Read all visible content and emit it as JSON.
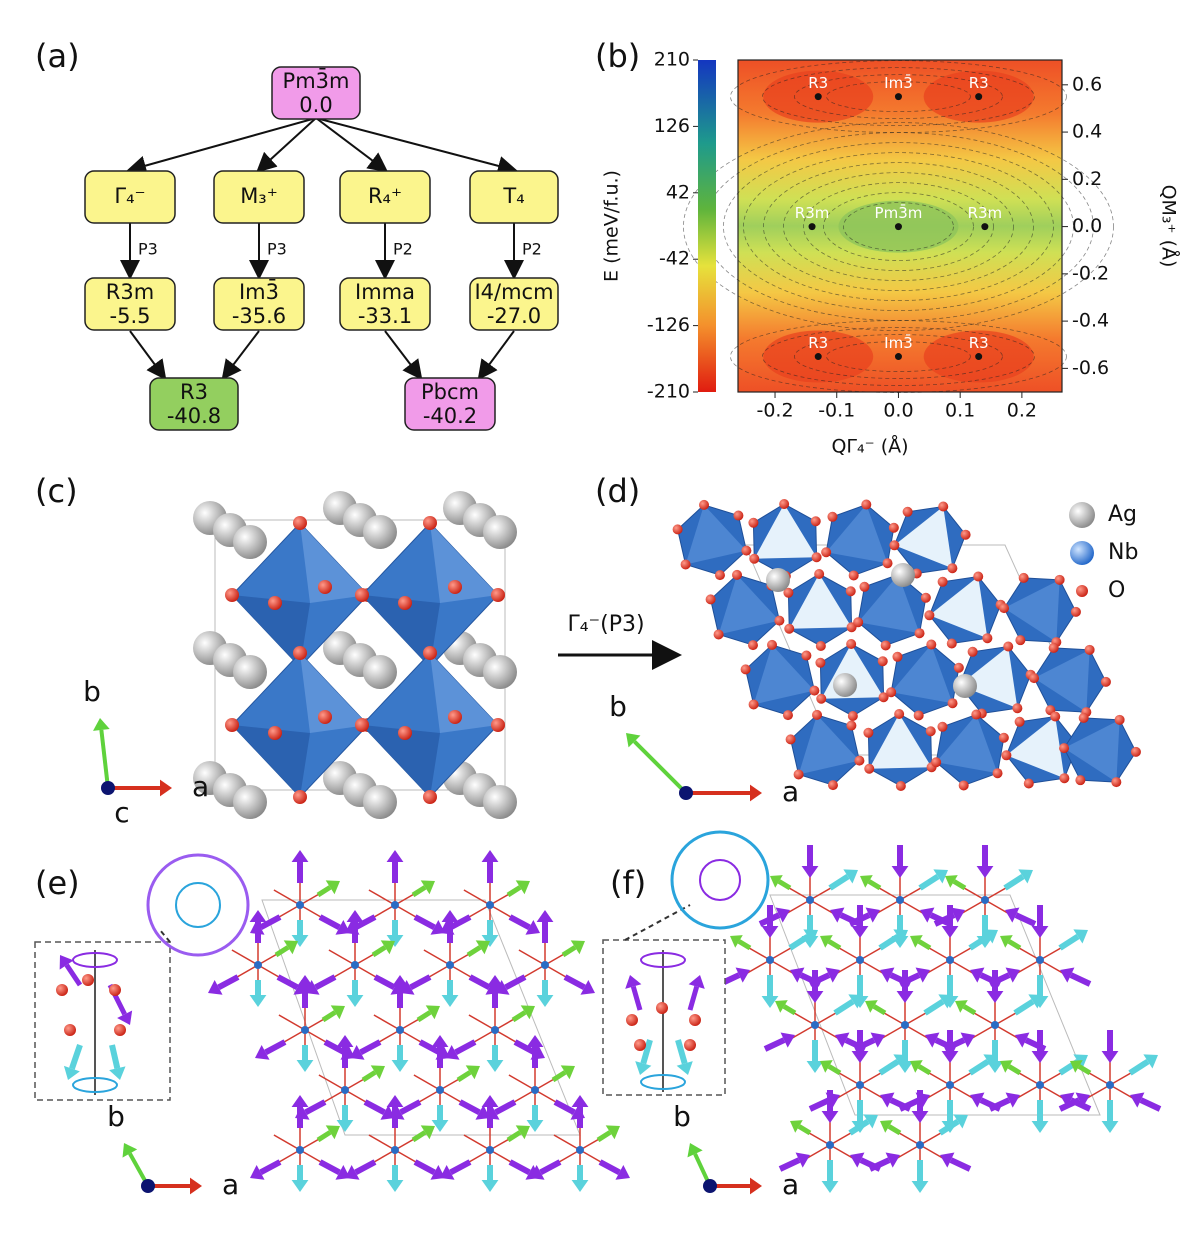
{
  "diagram": {
    "label": "(a)",
    "nodes": [
      {
        "label": "Pm3̄m",
        "energy": "0.0"
      },
      {
        "label": "Γ₄⁻"
      },
      {
        "label": "M₃⁺"
      },
      {
        "label": "R₄⁺"
      },
      {
        "label": "T₄"
      },
      {
        "label": "R3m",
        "energy": "-5.5"
      },
      {
        "label": "Im3̄",
        "energy": "-35.6"
      },
      {
        "label": "Imma",
        "energy": "-33.1"
      },
      {
        "label": "I4/mcm",
        "energy": "-27.0"
      },
      {
        "label": "R3",
        "energy": "-40.8"
      },
      {
        "label": "Pbcm",
        "energy": "-40.2"
      }
    ],
    "edge_labels": [
      "P3",
      "P3",
      "P2",
      "P2"
    ]
  },
  "chart_data": {
    "type": "contour",
    "label": "(b)",
    "x_label": "QΓ₄⁻ (Å)",
    "y2_label": "QM₃⁺ (Å)",
    "xlim": [
      -0.26,
      0.265
    ],
    "xticks": [
      -0.2,
      -0.1,
      {
        "value": 0,
        "label": "0.0"
      },
      0.1,
      0.2
    ],
    "y2lim": [
      -0.7,
      0.705
    ],
    "y2ticks": [
      0.6,
      0.4,
      0.2,
      {
        "value": 0,
        "label": "0.0"
      },
      -0.2,
      -0.4,
      -0.6
    ],
    "colorbar": {
      "label": "E (meV/f.u.)",
      "lim": [
        -210,
        210
      ],
      "ticks": [
        210,
        126,
        42,
        -42,
        -126,
        -210
      ]
    },
    "points": [
      {
        "label": "R3",
        "x": -0.13,
        "y": 0.55
      },
      {
        "label": "Im3̄",
        "x": 0,
        "y": 0.55
      },
      {
        "label": "R3",
        "x": 0.13,
        "y": 0.55
      },
      {
        "label": "R3m",
        "x": -0.14,
        "y": 0
      },
      {
        "label": "Pm3̄m",
        "x": 0,
        "y": 0
      },
      {
        "label": "R3m",
        "x": 0.14,
        "y": 0
      },
      {
        "label": "R3",
        "x": -0.13,
        "y": -0.55
      },
      {
        "label": "Im3̄",
        "x": 0,
        "y": -0.55
      },
      {
        "label": "R3",
        "x": 0.13,
        "y": -0.55
      }
    ]
  },
  "structures": {
    "c": {
      "label": "(c)",
      "b": "b",
      "a": "a",
      "c": "c"
    },
    "d": {
      "label": "(d)",
      "b": "b",
      "a": "a",
      "legend": [
        "Ag",
        "Nb",
        "O"
      ],
      "arrow": "Γ₄⁻(P3)"
    },
    "e": {
      "label": "(e)",
      "b": "b",
      "a": "a"
    },
    "f": {
      "label": "(f)",
      "b": "b",
      "a": "a"
    }
  }
}
